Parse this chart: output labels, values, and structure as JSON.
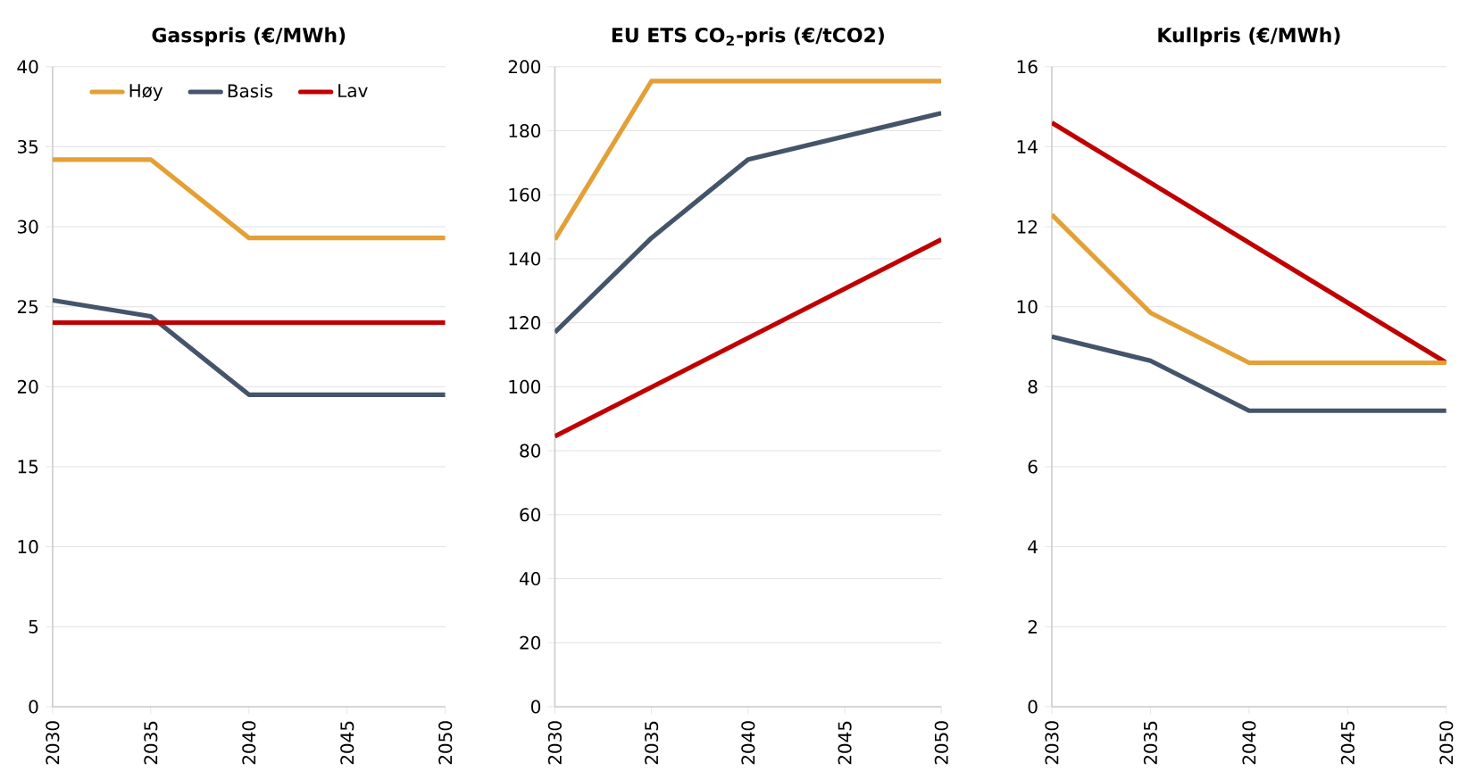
{
  "chart_data": [
    {
      "type": "line",
      "title": "Gasspris (€/MWh)",
      "xlim": [
        2030,
        2050
      ],
      "xticks": [
        2030,
        2035,
        2040,
        2045,
        2050
      ],
      "ylim": [
        0,
        40
      ],
      "yticks": [
        0,
        5,
        10,
        15,
        20,
        25,
        30,
        35,
        40
      ],
      "grid": "y",
      "legend": "top left",
      "marker": "none",
      "series": [
        {
          "name": "Høy",
          "color": "#e3a036",
          "x": [
            2030,
            2035,
            2040,
            2050
          ],
          "values": [
            34.2,
            34.2,
            29.3,
            29.3
          ]
        },
        {
          "name": "Basis",
          "color": "#44546a",
          "x": [
            2030,
            2035,
            2040,
            2050
          ],
          "values": [
            25.4,
            24.4,
            19.5,
            19.5
          ]
        },
        {
          "name": "Lav",
          "color": "#c00000",
          "x": [
            2030,
            2050
          ],
          "values": [
            24,
            24
          ]
        }
      ]
    },
    {
      "type": "line",
      "title": "EU ETS CO$_{2}$-pris (€/tCO2)",
      "xlim": [
        2030,
        2050
      ],
      "xticks": [
        2030,
        2035,
        2040,
        2045,
        2050
      ],
      "ylim": [
        0,
        200
      ],
      "yticks": [
        0,
        20,
        40,
        60,
        80,
        100,
        120,
        140,
        160,
        180,
        200
      ],
      "grid": "y",
      "marker": "none",
      "series": [
        {
          "color": "#e3a036",
          "x": [
            2030,
            2035,
            2050
          ],
          "values": [
            146,
            195.5,
            195.5
          ]
        },
        {
          "color": "#44546a",
          "x": [
            2030,
            2035,
            2040,
            2050
          ],
          "values": [
            117,
            146.5,
            171,
            185.5
          ]
        },
        {
          "color": "#c00000",
          "x": [
            2030,
            2050
          ],
          "values": [
            84.5,
            146
          ]
        }
      ]
    },
    {
      "type": "line",
      "title": "Kullpris (€/MWh)",
      "xlim": [
        2030,
        2050
      ],
      "xticks": [
        2030,
        2035,
        2040,
        2045,
        2050
      ],
      "ylim": [
        0,
        16
      ],
      "yticks": [
        0,
        2,
        4,
        6,
        8,
        10,
        12,
        14,
        16
      ],
      "grid": "y",
      "marker": "none",
      "series": [
        {
          "color": "#c00000",
          "x": [
            2030,
            2050
          ],
          "values": [
            14.6,
            8.6
          ]
        },
        {
          "color": "#e3a036",
          "x": [
            2030,
            2035,
            2040,
            2050
          ],
          "values": [
            12.3,
            9.85,
            8.6,
            8.6
          ]
        },
        {
          "color": "#44546a",
          "x": [
            2030,
            2035,
            2040,
            2050
          ],
          "values": [
            9.25,
            8.65,
            7.4,
            7.4
          ]
        }
      ]
    }
  ]
}
